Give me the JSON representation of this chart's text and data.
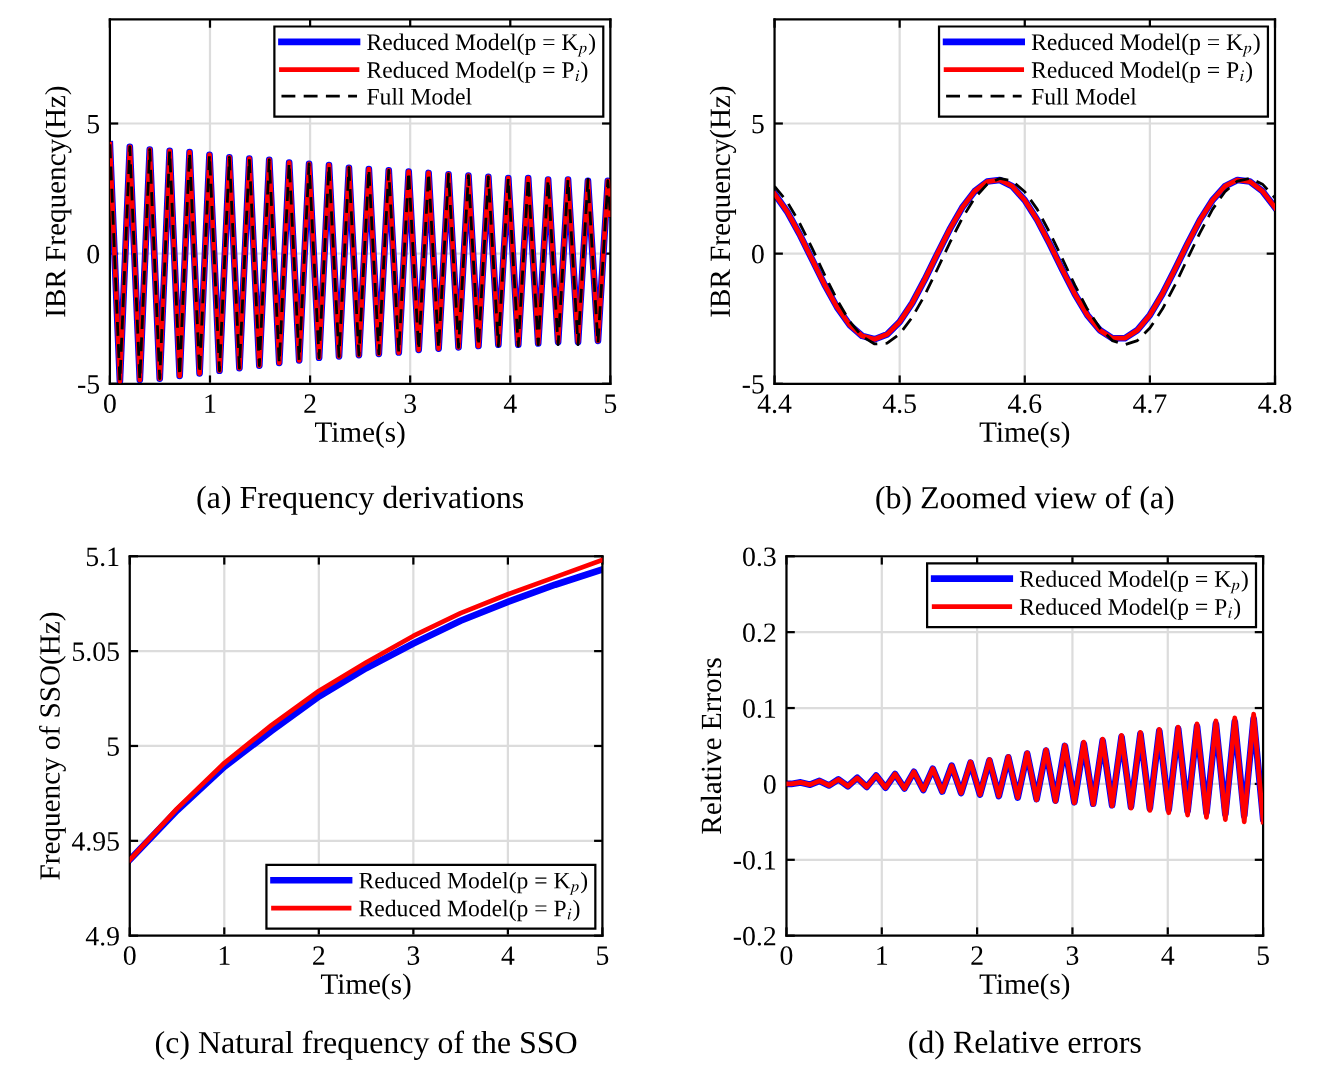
{
  "chart_data": [
    {
      "type": "line",
      "xlabel": "Time(s)",
      "ylabel": "IBR Frequency(Hz)",
      "annotations": [
        "(a) Frequency derivations"
      ],
      "xlim": [
        0,
        5
      ],
      "ylim": [
        -5,
        9
      ],
      "xticks": [
        0,
        1,
        2,
        3,
        4,
        5
      ],
      "yticks": [
        -5,
        0,
        5
      ],
      "grid": true,
      "legend": "top right",
      "x": [
        0,
        0.1,
        0.199,
        0.299,
        0.398,
        0.498,
        0.597,
        0.697,
        0.796,
        0.896,
        0.995,
        1.095,
        1.194,
        1.294,
        1.393,
        1.493,
        1.592,
        1.692,
        1.791,
        1.891,
        1.99,
        2.09,
        2.189,
        2.289,
        2.388,
        2.488,
        2.587,
        2.687,
        2.786,
        2.886,
        2.985,
        3.085,
        3.184,
        3.284,
        3.383,
        3.483,
        3.582,
        3.682,
        3.781,
        3.881,
        3.98,
        4.08,
        4.179,
        4.279,
        4.378,
        4.478,
        4.577,
        4.677,
        4.776,
        4.876,
        4.975,
        5.0
      ],
      "series": [
        {
          "name": "Reduced Model(p = K$_{p}$)",
          "color": "#0000ff",
          "line_style": "solid",
          "values": [
            4.2,
            -4.9,
            4.1,
            -4.85,
            4.0,
            -4.8,
            3.95,
            -4.7,
            3.9,
            -4.6,
            3.8,
            -4.5,
            3.7,
            -4.4,
            3.65,
            -4.3,
            3.6,
            -4.2,
            3.5,
            -4.1,
            3.45,
            -4.0,
            3.4,
            -3.95,
            3.3,
            -3.9,
            3.25,
            -3.85,
            3.2,
            -3.8,
            3.15,
            -3.7,
            3.1,
            -3.65,
            3.05,
            -3.6,
            3.0,
            -3.55,
            2.95,
            -3.5,
            2.9,
            -3.5,
            2.9,
            -3.45,
            2.85,
            -3.4,
            2.85,
            -3.4,
            2.8,
            -3.35,
            2.8,
            1.5
          ]
        },
        {
          "name": "Reduced Model(p = P$_{i}$)",
          "color": "#ff0000",
          "line_style": "solid",
          "values": [
            4.2,
            -4.9,
            4.1,
            -4.85,
            4.0,
            -4.8,
            3.95,
            -4.7,
            3.9,
            -4.6,
            3.8,
            -4.5,
            3.7,
            -4.4,
            3.65,
            -4.3,
            3.6,
            -4.2,
            3.5,
            -4.1,
            3.45,
            -4.0,
            3.4,
            -3.95,
            3.3,
            -3.9,
            3.25,
            -3.85,
            3.2,
            -3.8,
            3.15,
            -3.7,
            3.1,
            -3.65,
            3.05,
            -3.6,
            3.0,
            -3.55,
            2.95,
            -3.5,
            2.9,
            -3.5,
            2.9,
            -3.45,
            2.85,
            -3.4,
            2.85,
            -3.4,
            2.8,
            -3.35,
            2.8,
            1.5
          ]
        },
        {
          "name": "Full Model",
          "color": "#000000",
          "line_style": "dashed",
          "values": [
            4.2,
            -4.9,
            4.1,
            -4.85,
            4.0,
            -4.8,
            3.95,
            -4.7,
            3.9,
            -4.6,
            3.8,
            -4.5,
            3.7,
            -4.4,
            3.65,
            -4.3,
            3.6,
            -4.2,
            3.5,
            -4.1,
            3.45,
            -4.0,
            3.4,
            -3.95,
            3.3,
            -3.9,
            3.25,
            -3.85,
            3.2,
            -3.8,
            3.15,
            -3.7,
            3.1,
            -3.65,
            3.05,
            -3.6,
            3.0,
            -3.55,
            2.95,
            -3.55,
            2.9,
            -3.55,
            2.9,
            -3.5,
            2.85,
            -3.5,
            2.85,
            -3.5,
            2.85,
            -3.45,
            2.8,
            1.5
          ]
        }
      ]
    },
    {
      "type": "line",
      "xlabel": "Time(s)",
      "ylabel": "IBR Frequency(Hz)",
      "annotations": [
        "(b) Zoomed view of (a)"
      ],
      "xlim": [
        4.4,
        4.8
      ],
      "ylim": [
        -5,
        9
      ],
      "xticks": [
        4.4,
        4.5,
        4.6,
        4.7,
        4.8
      ],
      "yticks": [
        -5,
        0,
        5
      ],
      "grid": true,
      "legend": "top right",
      "x": [
        4.4,
        4.41,
        4.42,
        4.43,
        4.44,
        4.45,
        4.46,
        4.47,
        4.48,
        4.49,
        4.5,
        4.51,
        4.52,
        4.53,
        4.54,
        4.55,
        4.56,
        4.57,
        4.58,
        4.59,
        4.6,
        4.61,
        4.62,
        4.63,
        4.64,
        4.65,
        4.66,
        4.67,
        4.68,
        4.69,
        4.7,
        4.71,
        4.72,
        4.73,
        4.74,
        4.75,
        4.76,
        4.77,
        4.78,
        4.79,
        4.8
      ],
      "series": [
        {
          "name": "Reduced Model(p = K$_{p}$)",
          "color": "#0000ff",
          "line_style": "solid",
          "values": [
            2.3,
            1.62,
            0.75,
            -0.22,
            -1.19,
            -2.06,
            -2.74,
            -3.16,
            -3.29,
            -3.1,
            -2.62,
            -1.9,
            -1.0,
            -0.02,
            0.93,
            1.77,
            2.4,
            2.77,
            2.83,
            2.59,
            2.05,
            1.29,
            0.37,
            -0.61,
            -1.55,
            -2.36,
            -2.94,
            -3.25,
            -3.25,
            -2.94,
            -2.36,
            -1.55,
            -0.61,
            0.37,
            1.29,
            2.05,
            2.59,
            2.83,
            2.77,
            2.4,
            1.77
          ]
        },
        {
          "name": "Reduced Model(p = P$_{i}$)",
          "color": "#ff0000",
          "line_style": "solid",
          "values": [
            2.3,
            1.62,
            0.75,
            -0.22,
            -1.19,
            -2.06,
            -2.74,
            -3.16,
            -3.29,
            -3.1,
            -2.62,
            -1.9,
            -1.0,
            -0.02,
            0.93,
            1.77,
            2.4,
            2.77,
            2.83,
            2.59,
            2.05,
            1.29,
            0.37,
            -0.61,
            -1.55,
            -2.36,
            -2.94,
            -3.25,
            -3.25,
            -2.94,
            -2.36,
            -1.55,
            -0.61,
            0.37,
            1.29,
            2.05,
            2.59,
            2.83,
            2.77,
            2.4,
            1.77
          ]
        },
        {
          "name": "Full Model",
          "color": "#000000",
          "line_style": "dashed",
          "values": [
            2.58,
            2.0,
            1.18,
            0.21,
            -0.81,
            -1.78,
            -2.6,
            -3.18,
            -3.47,
            -3.44,
            -3.09,
            -2.45,
            -1.6,
            -0.61,
            0.41,
            1.36,
            2.14,
            2.67,
            2.89,
            2.79,
            2.38,
            1.7,
            0.8,
            -0.19,
            -1.21,
            -2.13,
            -2.86,
            -3.34,
            -3.5,
            -3.34,
            -2.86,
            -2.13,
            -1.21,
            -0.2,
            0.8,
            1.7,
            2.38,
            2.79,
            2.89,
            2.67,
            2.14
          ]
        }
      ]
    },
    {
      "type": "line",
      "xlabel": "Time(s)",
      "ylabel": "Frequency of SSO(Hz)",
      "annotations": [
        "(c) Natural frequency of the SSO"
      ],
      "xlim": [
        0,
        5
      ],
      "ylim": [
        4.9,
        5.1
      ],
      "xticks": [
        0,
        1,
        2,
        3,
        4,
        5
      ],
      "yticks": [
        4.9,
        4.95,
        5,
        5.05,
        5.1
      ],
      "grid": true,
      "legend": "bottom right",
      "x": [
        0,
        0.5,
        1,
        1.5,
        2,
        2.5,
        3,
        3.5,
        4,
        4.5,
        5
      ],
      "series": [
        {
          "name": "Reduced Model(p = K$_{p}$)",
          "color": "#0000ff",
          "line_style": "solid",
          "values": [
            4.94,
            4.966,
            4.989,
            5.008,
            5.026,
            5.041,
            5.054,
            5.066,
            5.076,
            5.085,
            5.093
          ]
        },
        {
          "name": "Reduced Model(p = P$_{i}$)",
          "color": "#ff0000",
          "line_style": "solid",
          "values": [
            4.94,
            4.967,
            4.991,
            5.011,
            5.029,
            5.044,
            5.058,
            5.07,
            5.08,
            5.089,
            5.098
          ]
        }
      ]
    },
    {
      "type": "line",
      "xlabel": "Time(s)",
      "ylabel": "Relative Errors",
      "annotations": [
        "(d) Relative errors"
      ],
      "xlim": [
        0,
        5
      ],
      "ylim": [
        -0.2,
        0.3
      ],
      "xticks": [
        0,
        1,
        2,
        3,
        4,
        5
      ],
      "yticks": [
        -0.2,
        -0.1,
        0,
        0.1,
        0.2,
        0.3
      ],
      "grid": true,
      "legend": "top right",
      "x": [
        0,
        0.05,
        0.149,
        0.248,
        0.347,
        0.446,
        0.545,
        0.644,
        0.743,
        0.842,
        0.941,
        1.04,
        1.139,
        1.238,
        1.337,
        1.436,
        1.535,
        1.634,
        1.733,
        1.832,
        1.931,
        2.03,
        2.129,
        2.228,
        2.327,
        2.426,
        2.525,
        2.624,
        2.723,
        2.822,
        2.921,
        3.02,
        3.119,
        3.218,
        3.317,
        3.416,
        3.515,
        3.614,
        3.713,
        3.812,
        3.911,
        4.01,
        4.109,
        4.208,
        4.307,
        4.406,
        4.505,
        4.604,
        4.703,
        4.802,
        4.901,
        5.0
      ],
      "series": [
        {
          "name": "Reduced Model(p = K$_{p}$)",
          "color": "#0000ff",
          "line_style": "solid",
          "values": [
            0,
            0,
            0.002,
            -0.001,
            0.004,
            -0.002,
            0.006,
            -0.003,
            0.008,
            -0.004,
            0.011,
            -0.005,
            0.013,
            -0.006,
            0.016,
            -0.008,
            0.02,
            -0.01,
            0.024,
            -0.012,
            0.028,
            -0.014,
            0.031,
            -0.016,
            0.035,
            -0.018,
            0.04,
            -0.02,
            0.044,
            -0.022,
            0.05,
            -0.024,
            0.053,
            -0.026,
            0.057,
            -0.028,
            0.062,
            -0.03,
            0.066,
            -0.032,
            0.07,
            -0.034,
            0.073,
            -0.036,
            0.076,
            -0.038,
            0.079,
            -0.04,
            0.082,
            -0.042,
            0.086,
            -0.045
          ]
        },
        {
          "name": "Reduced Model(p = P$_{i}$)",
          "color": "#ff0000",
          "line_style": "solid",
          "values": [
            0,
            0,
            0.002,
            -0.001,
            0.004,
            -0.002,
            0.006,
            -0.003,
            0.008,
            -0.004,
            0.011,
            -0.005,
            0.013,
            -0.006,
            0.016,
            -0.008,
            0.02,
            -0.01,
            0.024,
            -0.012,
            0.029,
            -0.014,
            0.032,
            -0.016,
            0.036,
            -0.018,
            0.041,
            -0.021,
            0.045,
            -0.023,
            0.051,
            -0.025,
            0.055,
            -0.027,
            0.059,
            -0.029,
            0.064,
            -0.032,
            0.068,
            -0.035,
            0.072,
            -0.038,
            0.075,
            -0.041,
            0.079,
            -0.044,
            0.083,
            -0.047,
            0.087,
            -0.05,
            0.092,
            -0.05
          ]
        }
      ]
    }
  ]
}
